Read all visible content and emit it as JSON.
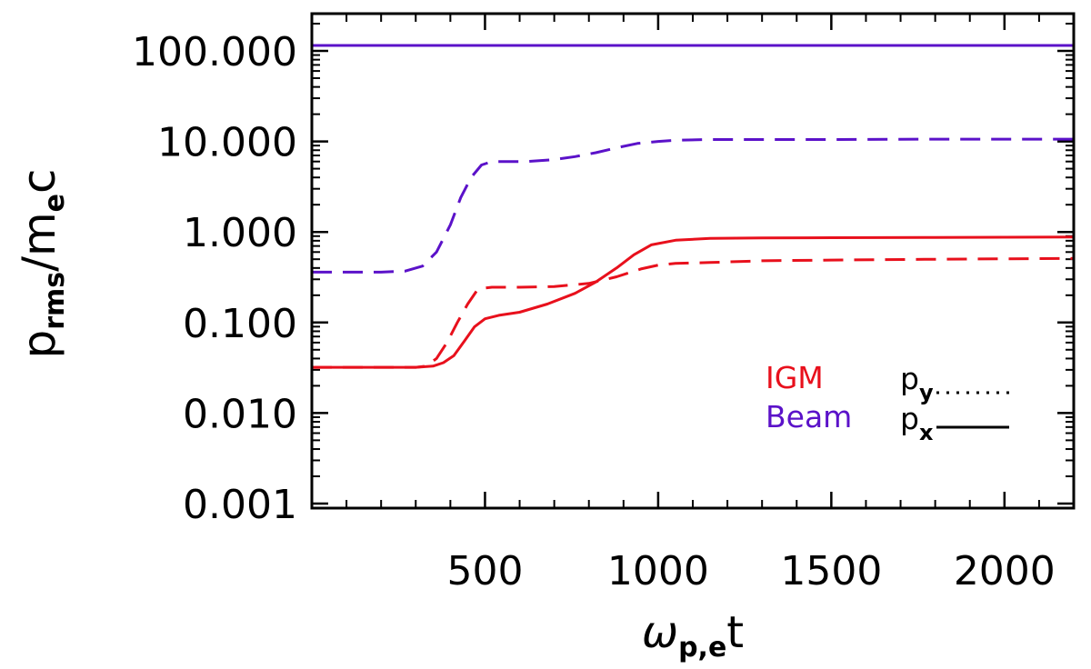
{
  "chart_data": {
    "type": "line",
    "ylabel": {
      "main": "p",
      "sub": "rms",
      "mid": "/m",
      "sub2": "e",
      "tail": "c"
    },
    "xlabel": {
      "main": "ω",
      "sub": "p,e",
      "tail": "t"
    },
    "xlim": [
      0,
      2200
    ],
    "ylim": [
      0.001,
      300
    ],
    "yscale": "log",
    "x_ticks": [
      {
        "v": 500,
        "label": "500"
      },
      {
        "v": 1000,
        "label": "1000"
      },
      {
        "v": 1500,
        "label": "1500"
      },
      {
        "v": 2000,
        "label": "2000"
      }
    ],
    "y_ticks": [
      {
        "v": 100,
        "label": "100.000"
      },
      {
        "v": 10,
        "label": "10.000"
      },
      {
        "v": 1,
        "label": "1.000"
      },
      {
        "v": 0.1,
        "label": "0.100"
      },
      {
        "v": 0.01,
        "label": "0.010"
      },
      {
        "v": 0.001,
        "label": "0.001"
      }
    ],
    "series": [
      {
        "color": "#5b12c9",
        "dash": "solid",
        "x": [
          0,
          500,
          1000,
          1500,
          2200
        ],
        "y": [
          115,
          115,
          115,
          115,
          115
        ]
      },
      {
        "color": "#5b12c9",
        "dash": "dashed",
        "x": [
          0,
          100,
          200,
          270,
          320,
          360,
          400,
          430,
          460,
          490,
          520,
          560,
          620,
          700,
          760,
          820,
          880,
          940,
          1000,
          1050,
          1150,
          1300,
          1500,
          1800,
          2200
        ],
        "y": [
          0.36,
          0.36,
          0.36,
          0.37,
          0.42,
          0.6,
          1.2,
          2.4,
          4.0,
          5.5,
          6.0,
          6.0,
          6.0,
          6.3,
          6.8,
          7.5,
          8.5,
          9.5,
          10.0,
          10.3,
          10.5,
          10.5,
          10.5,
          10.6,
          10.6
        ]
      },
      {
        "color": "#e8101c",
        "dash": "solid",
        "x": [
          0,
          100,
          200,
          300,
          350,
          380,
          410,
          440,
          470,
          500,
          540,
          600,
          680,
          760,
          820,
          880,
          930,
          980,
          1050,
          1150,
          1300,
          1500,
          1800,
          2200
        ],
        "y": [
          0.032,
          0.032,
          0.032,
          0.032,
          0.033,
          0.036,
          0.043,
          0.062,
          0.09,
          0.11,
          0.12,
          0.13,
          0.16,
          0.21,
          0.28,
          0.4,
          0.56,
          0.72,
          0.81,
          0.85,
          0.86,
          0.865,
          0.87,
          0.88
        ]
      },
      {
        "color": "#e8101c",
        "dash": "dashed",
        "x": [
          0,
          100,
          200,
          300,
          330,
          360,
          390,
          420,
          450,
          480,
          520,
          600,
          700,
          800,
          880,
          950,
          1000,
          1050,
          1150,
          1300,
          1500,
          1800,
          2200
        ],
        "y": [
          0.032,
          0.032,
          0.032,
          0.032,
          0.033,
          0.04,
          0.06,
          0.1,
          0.16,
          0.235,
          0.245,
          0.245,
          0.25,
          0.27,
          0.32,
          0.39,
          0.43,
          0.45,
          0.46,
          0.48,
          0.49,
          0.5,
          0.51
        ]
      }
    ],
    "legend": {
      "placement": "bottom-right",
      "groups": [
        {
          "label": "IGM",
          "color": "#e8101c"
        },
        {
          "label": "Beam",
          "color": "#5b12c9"
        }
      ],
      "styles": [
        {
          "main": "p",
          "sub": "y",
          "dash": "dotted"
        },
        {
          "main": "p",
          "sub": "x",
          "dash": "solid"
        }
      ]
    }
  }
}
